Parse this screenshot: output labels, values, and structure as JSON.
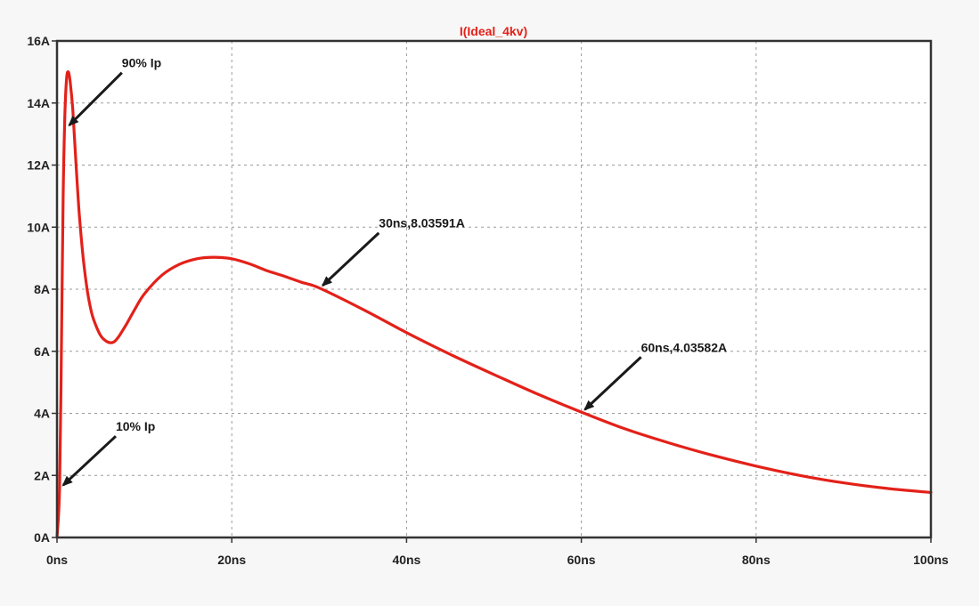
{
  "chart_data": {
    "type": "line",
    "title": "I(Ideal_4kv)",
    "xlabel": "",
    "ylabel": "",
    "x_unit": "ns",
    "y_unit": "A",
    "xlim": [
      0,
      100
    ],
    "ylim": [
      0,
      16
    ],
    "grid": true,
    "x_ticks": [
      0,
      20,
      40,
      60,
      80,
      100
    ],
    "y_ticks": [
      0,
      2,
      4,
      6,
      8,
      10,
      12,
      14,
      16
    ],
    "x_tick_labels": [
      "0ns",
      "20ns",
      "40ns",
      "60ns",
      "80ns",
      "100ns"
    ],
    "y_tick_labels": [
      "0A",
      "2A",
      "4A",
      "6A",
      "8A",
      "10A",
      "12A",
      "14A",
      "16A"
    ],
    "series": [
      {
        "color": "#e32119",
        "x": [
          0,
          0.3,
          0.5,
          0.7,
          0.9,
          1.1,
          1.3,
          1.5,
          1.8,
          2.1,
          2.5,
          3.0,
          3.5,
          4.0,
          4.5,
          5.0,
          5.5,
          6.0,
          6.5,
          7.0,
          8.0,
          9.0,
          10,
          12,
          14,
          16,
          18,
          20,
          22,
          24,
          26,
          28,
          30,
          35,
          40,
          45,
          50,
          55,
          60,
          65,
          70,
          75,
          80,
          85,
          90,
          95,
          100
        ],
        "y": [
          0,
          1.6,
          6.0,
          11.0,
          13.6,
          14.8,
          15.0,
          14.7,
          13.8,
          12.4,
          10.6,
          9.0,
          7.9,
          7.2,
          6.8,
          6.5,
          6.35,
          6.28,
          6.3,
          6.45,
          6.9,
          7.4,
          7.85,
          8.45,
          8.8,
          8.98,
          9.03,
          8.98,
          8.82,
          8.6,
          8.42,
          8.22,
          8.04,
          7.35,
          6.6,
          5.9,
          5.25,
          4.62,
          4.04,
          3.5,
          3.05,
          2.65,
          2.3,
          2.0,
          1.76,
          1.58,
          1.45
        ]
      }
    ],
    "annotations": [
      {
        "text": "90% Ip",
        "x": 1.0,
        "y": 13.2
      },
      {
        "text": "10% Ip",
        "x": 0.3,
        "y": 1.6
      },
      {
        "text": "30ns,8.03591A",
        "x": 30,
        "y": 8.03591
      },
      {
        "text": "60ns,4.03582A",
        "x": 60,
        "y": 4.03582
      }
    ]
  }
}
